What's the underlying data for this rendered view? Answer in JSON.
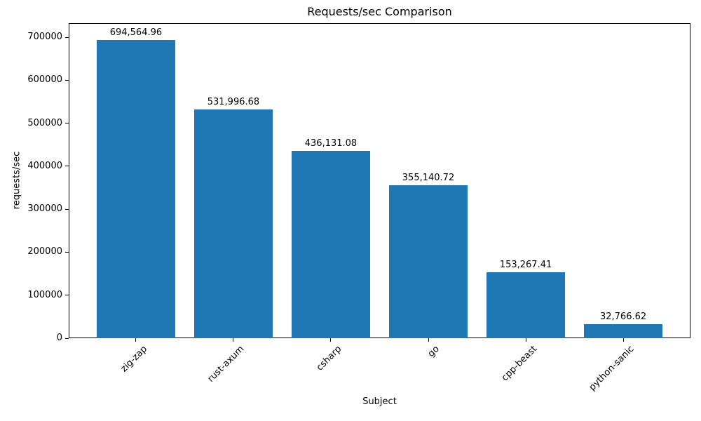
{
  "chart_data": {
    "type": "bar",
    "title": "Requests/sec Comparison",
    "xlabel": "Subject",
    "ylabel": "requests/sec",
    "categories": [
      "zig-zap",
      "rust-axum",
      "csharp",
      "go",
      "cpp-beast",
      "python-sanic"
    ],
    "values": [
      694564.96,
      531996.68,
      436131.08,
      355140.72,
      153267.41,
      32766.62
    ],
    "bar_labels": [
      "694,564.96",
      "531,996.68",
      "436,131.08",
      "355,140.72",
      "153,267.41",
      "32,766.62"
    ],
    "yticks": [
      0,
      100000,
      200000,
      300000,
      400000,
      500000,
      600000,
      700000
    ],
    "ytick_labels": [
      "0",
      "100000",
      "200000",
      "300000",
      "400000",
      "500000",
      "600000",
      "700000"
    ],
    "ylim": [
      0,
      733000
    ],
    "bar_color": "#1f77b4",
    "text_color": "#000000",
    "grid": false,
    "legend": null,
    "x_tick_rotation": 45
  }
}
